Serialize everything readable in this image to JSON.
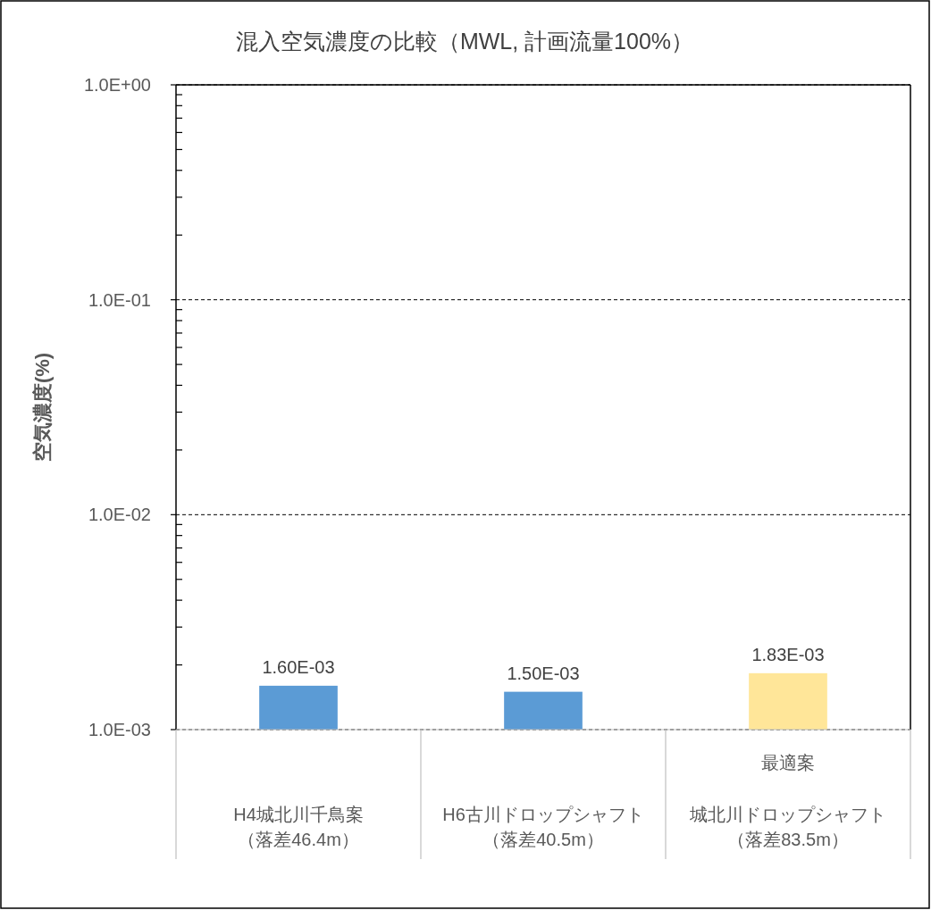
{
  "chart_data": {
    "type": "bar",
    "title": "混入空気濃度の比較（MWL, 計画流量100%）",
    "ylabel": "空気濃度(%)",
    "categories": [
      "H4城北川千鳥案（落差46.4m）",
      "H6古川ドロップシャフト（落差40.5m）",
      "最適案城北川ドロップシャフト（落差83.5m）"
    ],
    "values": [
      0.0016,
      0.0015,
      0.00183
    ],
    "colors": [
      "#5b9bd5",
      "#5b9bd5",
      "#ffe699"
    ],
    "value_labels": [
      "1.60E-03",
      "1.50E-03",
      "1.83E-03"
    ],
    "log": "y",
    "ylim": [
      0.001,
      1
    ],
    "yticks": [
      {
        "value": 0.001,
        "label": "1.0E-03"
      },
      {
        "value": 0.01,
        "label": "1.0E-02"
      },
      {
        "value": 0.1,
        "label": "1.0E-01"
      },
      {
        "value": 1,
        "label": "1.0E+00"
      }
    ],
    "grid": "y",
    "line_style": "dashed"
  }
}
